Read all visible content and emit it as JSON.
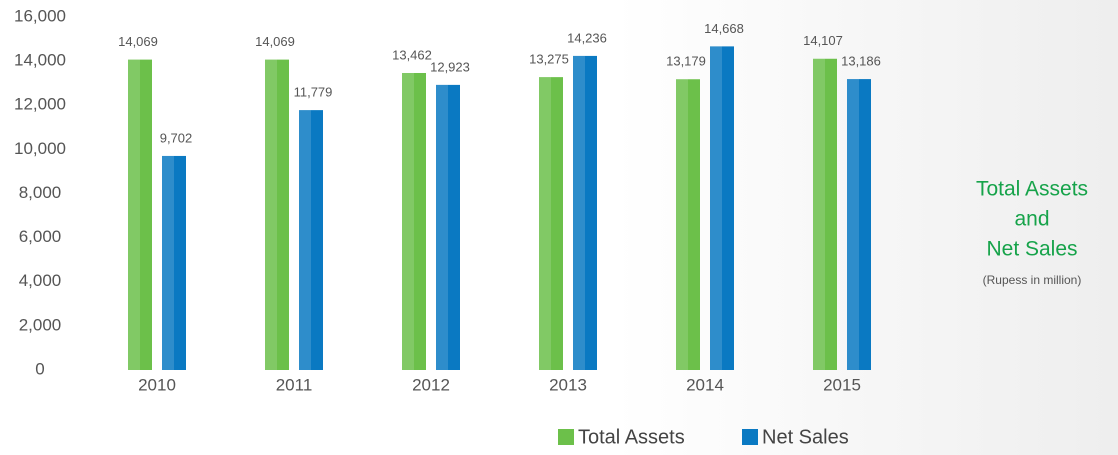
{
  "chart_data": {
    "type": "bar",
    "title": [
      "Total Assets",
      "and",
      "Net Sales"
    ],
    "subtitle": "(Rupess in million)",
    "categories": [
      "2010",
      "2011",
      "2012",
      "2013",
      "2014",
      "2015"
    ],
    "series": [
      {
        "name": "Total Assets",
        "color": "#6cc04a",
        "values": [
          14069,
          14069,
          13462,
          13275,
          13179,
          14107
        ],
        "value_labels": [
          "14,069",
          "14,069",
          "13,462",
          "13,275",
          "13,179",
          "14,107"
        ]
      },
      {
        "name": "Net Sales",
        "color": "#0a79c2",
        "values": [
          9702,
          11779,
          12923,
          14236,
          14668,
          13186
        ],
        "value_labels": [
          "9,702",
          "11,779",
          "12,923",
          "14,236",
          "14,668",
          "13,186"
        ]
      }
    ],
    "ylim": [
      0,
      16000
    ],
    "yticks": [
      0,
      {
        "value": 2000,
        "label": "2,000"
      },
      {
        "value": 4000,
        "label": "4,000"
      },
      {
        "value": 6000,
        "label": "6,000"
      },
      {
        "value": 8000,
        "label": "8,000"
      },
      {
        "value": 10000,
        "label": "10,000"
      },
      {
        "value": 12000,
        "label": "12,000"
      },
      {
        "value": 14000,
        "label": "14,000"
      },
      {
        "value": 16000,
        "label": "16,000"
      }
    ],
    "grid": false,
    "legend": "bottom"
  }
}
